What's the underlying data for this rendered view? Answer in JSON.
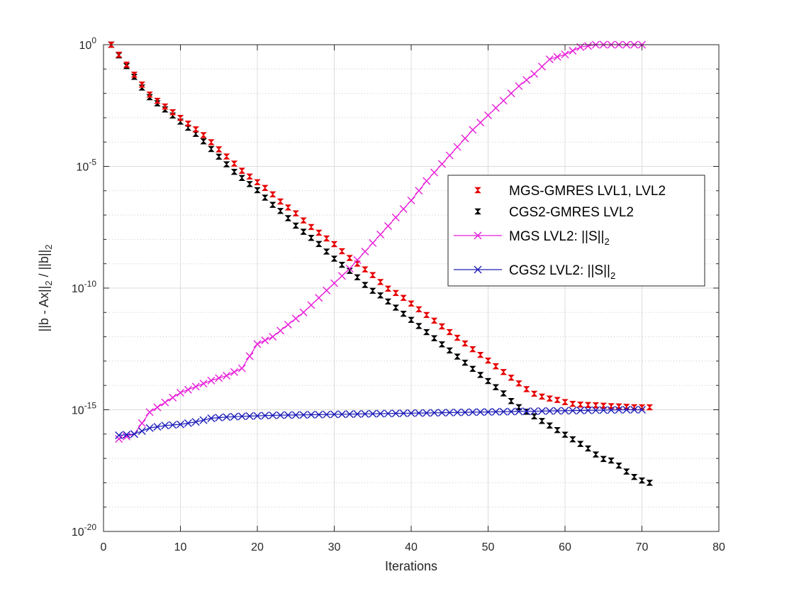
{
  "chart_data": {
    "type": "line",
    "title": "",
    "xlabel": "Iterations",
    "ylabel": "||b - Ax||_2 / ||b||_2",
    "xlim": [
      0,
      80
    ],
    "ylim_exponent": [
      -20,
      0
    ],
    "yscale": "log",
    "grid": true,
    "minor_grid": true,
    "legend_position": "right-middle",
    "x_ticks": [
      "0",
      "10",
      "20",
      "30",
      "40",
      "50",
      "60",
      "70",
      "80"
    ],
    "y_ticks": [
      {
        "base": "10",
        "exp": "0"
      },
      {
        "base": "10",
        "exp": "-5"
      },
      {
        "base": "10",
        "exp": "-10"
      },
      {
        "base": "10",
        "exp": "-15"
      },
      {
        "base": "10",
        "exp": "-20"
      }
    ],
    "series": [
      {
        "name": "MGS-GMRES LVL1, LVL2",
        "style": "markers",
        "marker": "bowtie",
        "color": "#e60000",
        "x_start": 1,
        "x_end": 71,
        "log10_y": [
          0.0,
          -0.7,
          -1.4,
          -2.1,
          -2.5,
          -2.9,
          -3.3,
          -3.7,
          -4.2,
          -4.7,
          -5.2,
          -5.6,
          -6.0,
          -6.5,
          -6.9,
          -7.4,
          -7.8,
          -8.2,
          -8.7,
          -9.1,
          -9.5,
          -10.0,
          -10.3,
          -10.7,
          -11.1,
          -11.5,
          -11.9,
          -12.3,
          -12.7,
          -13.1,
          -13.5,
          -13.9,
          -14.3,
          -14.5,
          -14.6,
          -14.75,
          -14.8,
          -14.82,
          -14.85,
          -14.87,
          -14.9,
          -14.9
        ]
      },
      {
        "name": "CGS2-GMRES LVL2",
        "style": "markers",
        "marker": "bowtie",
        "color": "#000000",
        "x_start": 1,
        "x_end": 71,
        "log10_y": [
          0.0,
          -0.7,
          -1.4,
          -2.1,
          -2.5,
          -2.9,
          -3.3,
          -3.7,
          -4.2,
          -4.7,
          -5.2,
          -5.6,
          -6.0,
          -6.5,
          -6.9,
          -7.4,
          -7.8,
          -8.2,
          -8.7,
          -9.1,
          -9.5,
          -10.0,
          -10.3,
          -10.7,
          -11.1,
          -11.5,
          -11.9,
          -12.3,
          -12.7,
          -13.1,
          -13.5,
          -13.9,
          -14.3,
          -14.8,
          -15.1,
          -15.4,
          -15.7,
          -16.0,
          -16.3,
          -16.6,
          -17.0,
          -17.1,
          -17.5,
          -17.85,
          -18.0
        ]
      },
      {
        "name": "MGS LVL2: ||S||_2",
        "style": "line-markers",
        "marker": "x",
        "color": "#e81cd9",
        "x_start": 2,
        "x_end": 70,
        "log10_y": [
          -16.2,
          -16.0,
          -15.1,
          -14.7,
          -14.3,
          -14.05,
          -13.8,
          -13.6,
          -13.3,
          -12.3,
          -12.0,
          -11.5,
          -11.0,
          -10.4,
          -9.8,
          -9.2,
          -8.5,
          -7.8,
          -7.1,
          -6.4,
          -5.6,
          -4.9,
          -4.2,
          -3.5,
          -2.9,
          -2.3,
          -1.7,
          -1.2,
          -0.6,
          -0.4,
          -0.1,
          0.0,
          0.0,
          0.0,
          0.0
        ]
      },
      {
        "name": "CGS2 LVL2: ||S||_2",
        "style": "line-markers",
        "marker": "x",
        "color": "#1c1cb8",
        "x_start": 2,
        "x_end": 70,
        "log10_y": [
          -16.05,
          -16.0,
          -15.75,
          -15.65,
          -15.6,
          -15.5,
          -15.35,
          -15.3,
          -15.27,
          -15.25,
          -15.23,
          -15.22,
          -15.21,
          -15.2,
          -15.19,
          -15.18,
          -15.17,
          -15.16,
          -15.15,
          -15.14,
          -15.13,
          -15.12,
          -15.11,
          -15.1,
          -15.09,
          -15.08,
          -15.07,
          -15.06,
          -15.05,
          -15.04,
          -15.03,
          -15.02,
          -15.01,
          -15.0,
          -15.0
        ]
      }
    ]
  }
}
